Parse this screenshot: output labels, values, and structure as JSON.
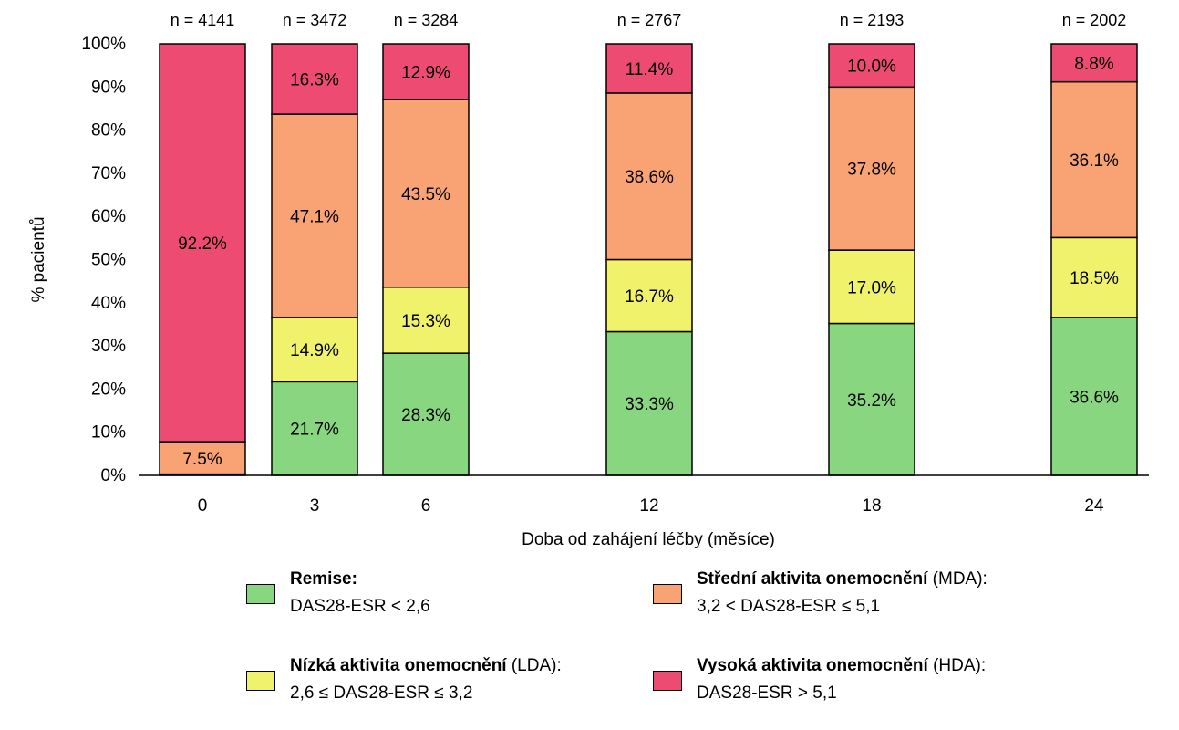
{
  "chart_data": {
    "type": "bar",
    "stacked": true,
    "categories": [
      "0",
      "3",
      "6",
      "12",
      "18",
      "24"
    ],
    "counts": [
      "n = 4141",
      "n = 3472",
      "n = 3284",
      "n = 2767",
      "n = 2193",
      "n = 2002"
    ],
    "series": [
      {
        "name": "Remise",
        "color": "#88d67f",
        "values": [
          0.3,
          21.7,
          28.3,
          33.3,
          35.2,
          36.6
        ],
        "labels": [
          "",
          "21.7%",
          "28.3%",
          "33.3%",
          "35.2%",
          "36.6%"
        ]
      },
      {
        "name": "Nízká aktivita onemocnění (LDA)",
        "color": "#f1f26c",
        "values": [
          0,
          14.9,
          15.3,
          16.7,
          17.0,
          18.5
        ],
        "labels": [
          "",
          "14.9%",
          "15.3%",
          "16.7%",
          "17.0%",
          "18.5%"
        ]
      },
      {
        "name": "Střední aktivita onemocnění (MDA)",
        "color": "#f9a274",
        "values": [
          7.5,
          47.1,
          43.5,
          38.6,
          37.8,
          36.1
        ],
        "labels": [
          "7.5%",
          "47.1%",
          "43.5%",
          "38.6%",
          "37.8%",
          "36.1%"
        ]
      },
      {
        "name": "Vysoká aktivita onemocnění (HDA)",
        "color": "#ee4b72",
        "values": [
          92.2,
          16.3,
          12.9,
          11.4,
          10.0,
          8.8
        ],
        "labels": [
          "92.2%",
          "16.3%",
          "12.9%",
          "11.4%",
          "10.0%",
          "8.8%"
        ]
      }
    ],
    "ylim": [
      0,
      100
    ],
    "yticks": [
      "0%",
      "10%",
      "20%",
      "30%",
      "40%",
      "50%",
      "60%",
      "70%",
      "80%",
      "90%",
      "100%"
    ],
    "xlabel": "Doba od zahájení léčby (měsíce)",
    "ylabel": "% pacientů",
    "grid": false,
    "legend_position": "bottom"
  },
  "legend": [
    {
      "bold": "Remise:",
      "rest": "",
      "line2": "DAS28-ESR < 2,6",
      "color": "#88d67f"
    },
    {
      "bold": "Střední aktivita onemocnění",
      "rest": " (MDA):",
      "line2": "3,2 < DAS28-ESR ≤ 5,1",
      "color": "#f9a274"
    },
    {
      "bold": "Nízká aktivita onemocnění",
      "rest": " (LDA):",
      "line2": "2,6 ≤ DAS28-ESR ≤ 3,2",
      "color": "#f1f26c"
    },
    {
      "bold": "Vysoká aktivita onemocnění",
      "rest": " (HDA):",
      "line2": "DAS28-ESR > 5,1",
      "color": "#ee4b72"
    }
  ]
}
